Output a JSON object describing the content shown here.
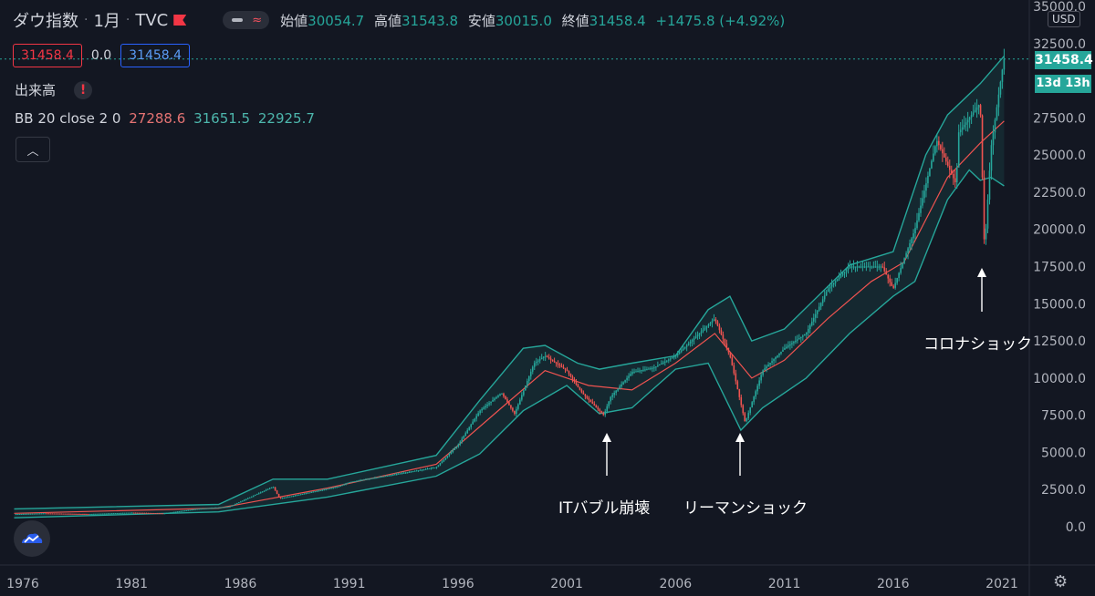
{
  "header": {
    "symbol": "ダウ指数",
    "interval": "1月",
    "exchange": "TVC",
    "ohlc": {
      "open_label": "始値",
      "open": "30054.7",
      "high_label": "高値",
      "high": "31543.8",
      "low_label": "安値",
      "low": "30015.0",
      "close_label": "終値",
      "close": "31458.4",
      "change": "+1475.8 (+4.92%)"
    }
  },
  "price_boxes": {
    "bid": "31458.4",
    "spread": "0.0",
    "ask": "31458.4"
  },
  "volume": {
    "label": "出来高",
    "warning": "!"
  },
  "indicator": {
    "name": "BB 20 close 2 0",
    "basis": "27288.6",
    "upper": "31651.5",
    "lower": "22925.7",
    "collapse_icon": "chevron-up-icon"
  },
  "axis": {
    "currency": "USD",
    "last_price": "31458.4",
    "countdown": "13d 13h"
  },
  "annotations": {
    "it_bubble": "ITバブル崩壊",
    "lehman": "リーマンショック",
    "corona": "コロナショック"
  },
  "colors": {
    "background": "#131722",
    "up": "#26a69a",
    "down": "#ef5350",
    "band": "#26a69a",
    "basis": "#ef5350"
  },
  "chart_data": {
    "type": "line",
    "title": "ダウ指数",
    "x_unit": "year",
    "y_unit": "USD",
    "ylim": [
      -1500,
      35000
    ],
    "xlim": [
      1975.6,
      2026.0
    ],
    "y_ticks": [
      "0.0",
      "2500.0",
      "5000.0",
      "7500.0",
      "10000.0",
      "12500.0",
      "15000.0",
      "17500.0",
      "20000.0",
      "22500.0",
      "25000.0",
      "27500.0",
      "32500.0",
      "35000.0"
    ],
    "y_tick_values": [
      0,
      2500,
      5000,
      7500,
      10000,
      12500,
      15000,
      17500,
      20000,
      22500,
      25000,
      27500,
      32500,
      35000
    ],
    "x_ticks": [
      "1976",
      "1981",
      "1986",
      "1991",
      "1996",
      "2001",
      "2006",
      "2011",
      "2016",
      "2021"
    ],
    "x_tick_values": [
      1976,
      1981,
      1986,
      1991,
      1996,
      2001,
      2006,
      2011,
      2016,
      2021
    ],
    "grid": false,
    "series": [
      {
        "name": "close",
        "x": [
          1975.6,
          1977,
          1979,
          1981,
          1982.5,
          1984,
          1985.5,
          1987.5,
          1987.8,
          1988.5,
          1990.5,
          1991,
          1993,
          1995,
          1996,
          1997,
          1998,
          1998.6,
          1999.5,
          2000,
          2001,
          2001.7,
          2002.7,
          2003,
          2004,
          2005,
          2006,
          2007.8,
          2008.5,
          2009.2,
          2010,
          2011,
          2012,
          2013,
          2014,
          2015.5,
          2016,
          2017,
          2018,
          2018.9,
          2019,
          2020,
          2020.2,
          2020.5,
          2021,
          2021.1
        ],
        "values": [
          850,
          900,
          850,
          950,
          900,
          1200,
          1350,
          2700,
          1900,
          2100,
          2700,
          3000,
          3500,
          4000,
          5500,
          7800,
          9000,
          7600,
          11000,
          11500,
          10500,
          9000,
          7500,
          8700,
          10400,
          10700,
          11500,
          14000,
          11500,
          7000,
          10500,
          12000,
          13000,
          16000,
          17500,
          17500,
          16000,
          20000,
          26000,
          23000,
          26500,
          28500,
          18500,
          25500,
          30600,
          31458.4
        ]
      },
      {
        "name": "bb_upper",
        "x": [
          1975.6,
          1985,
          1987.5,
          1990,
          1995,
          1997,
          1999,
          2000,
          2001.5,
          2002.5,
          2004,
          2006,
          2007.5,
          2008.5,
          2009.5,
          2011,
          2014,
          2016,
          2017.5,
          2018.5,
          2020,
          2021.1
        ],
        "values": [
          1200,
          1500,
          3200,
          3200,
          4800,
          8500,
          12000,
          12200,
          11000,
          10600,
          11000,
          11500,
          14600,
          15500,
          12500,
          13300,
          17600,
          18500,
          25000,
          27700,
          29800,
          31651.5
        ]
      },
      {
        "name": "bb_basis",
        "x": [
          1975.6,
          1985,
          1990,
          1995,
          1998,
          2000,
          2002,
          2004,
          2006,
          2007.8,
          2009.5,
          2011,
          2013,
          2015,
          2016.5,
          2018.5,
          2020,
          2021.1
        ],
        "values": [
          900,
          1250,
          2600,
          4200,
          8000,
          10500,
          9500,
          9200,
          11000,
          13000,
          10000,
          11200,
          14000,
          16500,
          17800,
          23500,
          25800,
          27288.6
        ]
      },
      {
        "name": "bb_lower",
        "x": [
          1975.6,
          1985,
          1990,
          1995,
          1997,
          1999,
          2001,
          2002.5,
          2004,
          2006,
          2007.5,
          2009,
          2010,
          2012,
          2014,
          2016,
          2017,
          2018.5,
          2019.5,
          2020,
          2020.5,
          2021.1
        ],
        "values": [
          600,
          1000,
          2000,
          3400,
          4900,
          7800,
          9500,
          7600,
          8000,
          10600,
          11000,
          6500,
          8000,
          10000,
          13000,
          15500,
          16500,
          22000,
          24000,
          23300,
          23500,
          22925.7
        ]
      }
    ]
  }
}
